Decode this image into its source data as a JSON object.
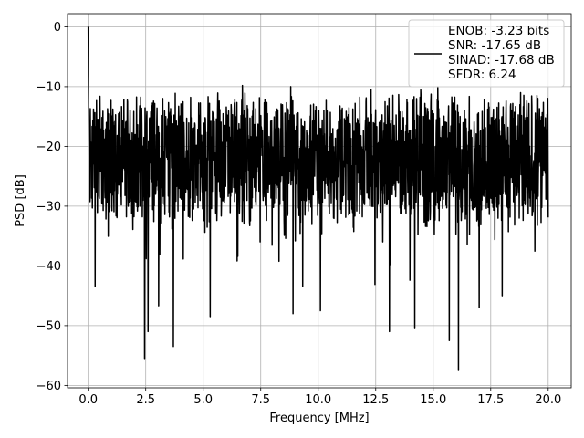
{
  "chart_data": {
    "type": "line",
    "xlabel": "Frequency [MHz]",
    "ylabel": "PSD [dB]",
    "xlim": [
      -0.9,
      21.0
    ],
    "ylim": [
      -60.4,
      2.2
    ],
    "xticks": [
      0.0,
      2.5,
      5.0,
      7.5,
      10.0,
      12.5,
      15.0,
      17.5,
      20.0
    ],
    "xtick_labels": [
      "0.0",
      "2.5",
      "5.0",
      "7.5",
      "10.0",
      "12.5",
      "15.0",
      "17.5",
      "20.0"
    ],
    "yticks": [
      0,
      -10,
      -20,
      -30,
      -40,
      -50,
      -60
    ],
    "ytick_labels": [
      "0",
      "−10",
      "−20",
      "−30",
      "−40",
      "−50",
      "−60"
    ],
    "grid": true,
    "legend_position": "top-right",
    "series": [
      {
        "legend_lines": [
          "ENOB: -3.23 bits",
          "SNR: -17.65 dB",
          "SINAD: -17.68 dB",
          "SFDR: 6.24"
        ],
        "color": "#000000",
        "x_range": [
          0.0,
          20.0
        ],
        "num_points": 2000,
        "typical_level": -22,
        "upper_envelope": -12,
        "dc_peak": {
          "x": 0.0,
          "y": 0.0
        },
        "notable_dips": [
          {
            "x": 0.3,
            "y": -43.5
          },
          {
            "x": 2.45,
            "y": -55.5
          },
          {
            "x": 2.6,
            "y": -51
          },
          {
            "x": 3.7,
            "y": -53.5
          },
          {
            "x": 5.3,
            "y": -48.5
          },
          {
            "x": 8.9,
            "y": -48
          },
          {
            "x": 10.1,
            "y": -47.5
          },
          {
            "x": 13.1,
            "y": -51
          },
          {
            "x": 14.2,
            "y": -50.5
          },
          {
            "x": 15.7,
            "y": -52.5
          },
          {
            "x": 16.1,
            "y": -57.5
          },
          {
            "x": 17.0,
            "y": -47
          },
          {
            "x": 18.0,
            "y": -45
          }
        ],
        "notable_peaks": [
          {
            "x": 6.7,
            "y": -9.8
          },
          {
            "x": 8.8,
            "y": -10.0
          },
          {
            "x": 12.3,
            "y": -10.5
          },
          {
            "x": 15.2,
            "y": -10.0
          },
          {
            "x": 18.8,
            "y": -11.0
          }
        ]
      }
    ]
  }
}
